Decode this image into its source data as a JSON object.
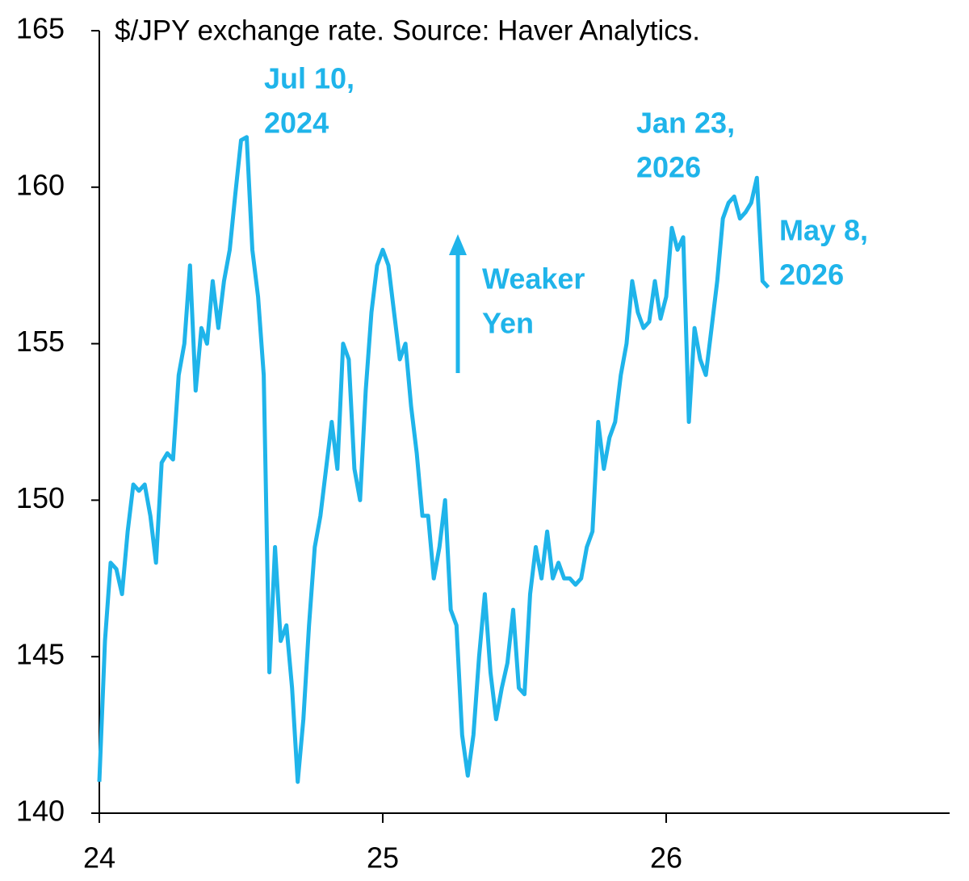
{
  "chart_data": {
    "type": "line",
    "title": "$/JPY exchange rate. Source: Haver Analytics.",
    "annotations": [
      {
        "lines": [
          "Jul 10,",
          "2024"
        ]
      },
      {
        "lines": [
          "Jan 23,",
          "2026"
        ]
      },
      {
        "lines": [
          "May 8,",
          "2026"
        ]
      },
      {
        "lines": [
          "Weaker",
          "Yen"
        ]
      }
    ],
    "x": [
      2024,
      2024.02,
      2024.04,
      2024.06,
      2024.08,
      2024.1,
      2024.12,
      2024.14,
      2024.16,
      2024.18,
      2024.2,
      2024.22,
      2024.24,
      2024.26,
      2024.28,
      2024.3,
      2024.32,
      2024.34,
      2024.36,
      2024.38,
      2024.4,
      2024.42,
      2024.44,
      2024.46,
      2024.48,
      2024.5,
      2024.52,
      2024.54,
      2024.56,
      2024.58,
      2024.6,
      2024.62,
      2024.64,
      2024.66,
      2024.68,
      2024.7,
      2024.72,
      2024.74,
      2024.76,
      2024.78,
      2024.8,
      2024.82,
      2024.84,
      2024.86,
      2024.88,
      2024.9,
      2024.92,
      2024.94,
      2024.96,
      2024.98,
      2025,
      2025.02,
      2025.04,
      2025.06,
      2025.08,
      2025.1,
      2025.12,
      2025.14,
      2025.16,
      2025.18,
      2025.2,
      2025.22,
      2025.24,
      2025.26,
      2025.28,
      2025.3,
      2025.32,
      2025.34,
      2025.36,
      2025.38,
      2025.4,
      2025.42,
      2025.44,
      2025.46,
      2025.48,
      2025.5,
      2025.52,
      2025.54,
      2025.56,
      2025.58,
      2025.6,
      2025.62,
      2025.64,
      2025.66,
      2025.68,
      2025.7,
      2025.72,
      2025.74,
      2025.76,
      2025.78,
      2025.8,
      2025.82,
      2025.84,
      2025.86,
      2025.88,
      2025.9,
      2025.92,
      2025.94,
      2025.96,
      2025.98,
      2026,
      2026.02,
      2026.04,
      2026.06,
      2026.08,
      2026.1,
      2026.12,
      2026.14,
      2026.16,
      2026.18,
      2026.2,
      2026.22,
      2026.24,
      2026.26,
      2026.28,
      2026.3,
      2026.32,
      2026.34,
      2026.36
    ],
    "series": [
      {
        "name": "$/JPY",
        "color": "#1fb4ea",
        "values": [
          141,
          145.5,
          148,
          147.8,
          147,
          149,
          150.5,
          150.3,
          150.5,
          149.5,
          148,
          151.2,
          151.5,
          151.3,
          154,
          155,
          157.5,
          153.5,
          155.5,
          155,
          157,
          155.5,
          157,
          158,
          159.8,
          161.5,
          161.6,
          158,
          156.5,
          154,
          144.5,
          148.5,
          145.5,
          146,
          144,
          141,
          143,
          146,
          148.5,
          149.5,
          151,
          152.5,
          151,
          155,
          154.5,
          151,
          150,
          153.5,
          156,
          157.5,
          158,
          157.5,
          156,
          154.5,
          155,
          153,
          151.5,
          149.5,
          149.5,
          147.5,
          148.5,
          150,
          146.5,
          146,
          142.5,
          141.2,
          142.5,
          145,
          147,
          144.5,
          143,
          144,
          144.8,
          146.5,
          144,
          143.8,
          147,
          148.5,
          147.5,
          149,
          147.5,
          148,
          147.5,
          147.5,
          147.3,
          147.5,
          148.5,
          149,
          152.5,
          151,
          152,
          152.5,
          154,
          155,
          157,
          156,
          155.5,
          155.7,
          157,
          155.8,
          156.5,
          158.7,
          158,
          158.4,
          152.5,
          155.5,
          154.5,
          154,
          155.5,
          157,
          159,
          159.5,
          159.7,
          159,
          159.2,
          159.5,
          160.3,
          157,
          156.8
        ]
      }
    ],
    "xlim": [
      2024,
      2027
    ],
    "xticks": [
      {
        "value": 2024,
        "label": "24"
      },
      {
        "value": 2025,
        "label": "25"
      },
      {
        "value": 2026,
        "label": "26"
      }
    ],
    "ylim": [
      140,
      165
    ],
    "yticks": [
      140,
      145,
      150,
      155,
      160,
      165
    ],
    "grid": false
  }
}
